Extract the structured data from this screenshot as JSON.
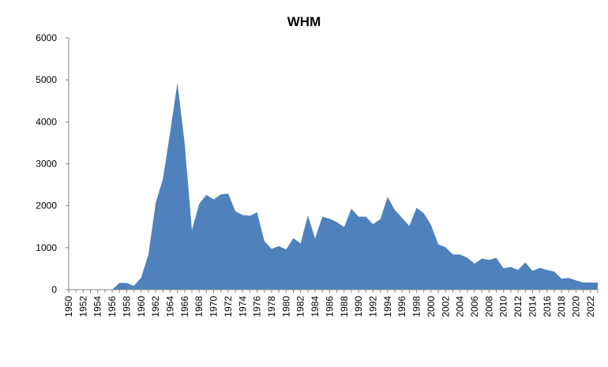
{
  "chart_data": {
    "type": "area",
    "title": "WHM",
    "xlabel": "",
    "ylabel": "",
    "ylim": [
      0,
      6000
    ],
    "yticks": [
      0,
      1000,
      2000,
      3000,
      4000,
      5000,
      6000
    ],
    "xlim": [
      1950,
      2023
    ],
    "xtick_labels": [
      "1950",
      "1952",
      "1954",
      "1956",
      "1958",
      "1960",
      "1962",
      "1964",
      "1966",
      "1968",
      "1970",
      "1972",
      "1974",
      "1976",
      "1978",
      "1980",
      "1982",
      "1984",
      "1986",
      "1988",
      "1990",
      "1992",
      "1994",
      "1996",
      "1998",
      "2000",
      "2002",
      "2004",
      "2006",
      "2008",
      "2010",
      "2012",
      "2014",
      "2016",
      "2018",
      "2020",
      "2022"
    ],
    "grid": false,
    "legend": "none",
    "color": "#4f81bd",
    "series": [
      {
        "x": [
          1950,
          1951,
          1952,
          1953,
          1954,
          1955,
          1956,
          1957,
          1958,
          1959,
          1960,
          1961,
          1962,
          1963,
          1964,
          1965,
          1966,
          1967,
          1968,
          1969,
          1970,
          1971,
          1972,
          1973,
          1974,
          1975,
          1976,
          1977,
          1978,
          1979,
          1980,
          1981,
          1982,
          1983,
          1984,
          1985,
          1986,
          1987,
          1988,
          1989,
          1990,
          1991,
          1992,
          1993,
          1994,
          1995,
          1996,
          1997,
          1998,
          1999,
          2000,
          2001,
          2002,
          2003,
          2004,
          2005,
          2006,
          2007,
          2008,
          2009,
          2010,
          2011,
          2012,
          2013,
          2014,
          2015,
          2016,
          2017,
          2018,
          2019,
          2020,
          2021,
          2022,
          2023
        ],
        "values": [
          0,
          0,
          0,
          0,
          0,
          0,
          0,
          160,
          160,
          90,
          290,
          840,
          2060,
          2640,
          3750,
          4930,
          3490,
          1420,
          2040,
          2260,
          2150,
          2270,
          2290,
          1870,
          1780,
          1760,
          1840,
          1160,
          970,
          1040,
          960,
          1230,
          1100,
          1770,
          1220,
          1740,
          1690,
          1610,
          1490,
          1930,
          1740,
          1740,
          1560,
          1680,
          2210,
          1900,
          1710,
          1520,
          1950,
          1820,
          1540,
          1080,
          1010,
          840,
          840,
          760,
          620,
          740,
          710,
          760,
          510,
          540,
          470,
          650,
          450,
          520,
          470,
          430,
          260,
          280,
          220,
          170,
          170,
          170
        ]
      }
    ]
  }
}
